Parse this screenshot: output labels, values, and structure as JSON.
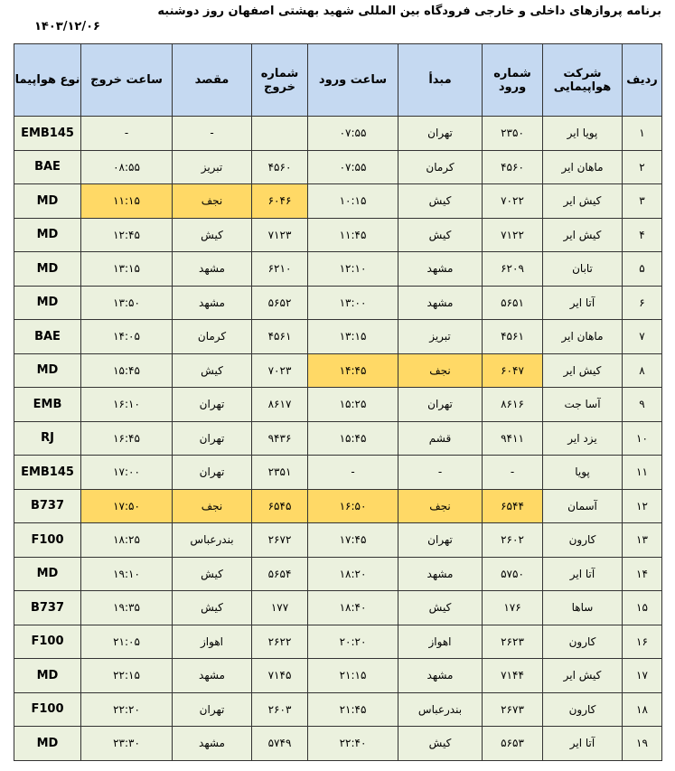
{
  "header": {
    "title": "برنامه پروازهای داخلی و خارجی فرودگاه بین المللی شهید بهشتی اصفهان روز  دوشنبه",
    "date": "۱۴۰۳/۱۲/۰۶"
  },
  "table": {
    "columns": [
      "ردیف",
      "شرکت هواپیمایی",
      "شماره ورود",
      "مبدأ",
      "ساعت ورود",
      "شماره خروج",
      "مقصد",
      "ساعت خروج",
      "نوع هواپیما"
    ],
    "rows": [
      [
        "۱",
        "پویا ایر",
        "۲۳۵۰",
        "تهران",
        "۰۷:۵۵",
        null,
        "-",
        "-",
        "EMB145"
      ],
      [
        "۲",
        "ماهان ایر",
        "۴۵۶۰",
        "کرمان",
        "۰۷:۵۵",
        "۴۵۶۰",
        "تبریز",
        "۰۸:۵۵",
        "BAE"
      ],
      [
        "۳",
        "کیش ایر",
        "۷۰۲۲",
        "کیش",
        "۱۰:۱۵",
        "۶۰۴۶",
        "نجف",
        "۱۱:۱۵",
        "MD"
      ],
      [
        "۴",
        "کیش ایر",
        "۷۱۲۲",
        "کیش",
        "۱۱:۴۵",
        "۷۱۲۳",
        "کیش",
        "۱۲:۴۵",
        "MD"
      ],
      [
        "۵",
        "تابان",
        "۶۲۰۹",
        "مشهد",
        "۱۲:۱۰",
        "۶۲۱۰",
        "مشهد",
        "۱۳:۱۵",
        "MD"
      ],
      [
        "۶",
        "آتا ایر",
        "۵۶۵۱",
        "مشهد",
        "۱۳:۰۰",
        "۵۶۵۲",
        "مشهد",
        "۱۳:۵۰",
        "MD"
      ],
      [
        "۷",
        "ماهان ایر",
        "۴۵۶۱",
        "تبریز",
        "۱۳:۱۵",
        "۴۵۶۱",
        "کرمان",
        "۱۴:۰۵",
        "BAE"
      ],
      [
        "۸",
        "کیش ایر",
        "۶۰۴۷",
        "نجف",
        "۱۴:۴۵",
        "۷۰۲۳",
        "کیش",
        "۱۵:۴۵",
        "MD"
      ],
      [
        "۹",
        "آسا جت",
        "۸۶۱۶",
        "تهران",
        "۱۵:۲۵",
        "۸۶۱۷",
        "تهران",
        "۱۶:۱۰",
        "EMB"
      ],
      [
        "۱۰",
        "یزد ایر",
        "۹۴۱۱",
        "قشم",
        "۱۵:۴۵",
        "۹۴۳۶",
        "تهران",
        "۱۶:۴۵",
        "RJ"
      ],
      [
        "۱۱",
        "پویا",
        "-",
        "-",
        "-",
        "۲۳۵۱",
        "تهران",
        "۱۷:۰۰",
        "EMB145"
      ],
      [
        "۱۲",
        "آسمان",
        "۶۵۴۴",
        "نجف",
        "۱۶:۵۰",
        "۶۵۴۵",
        "نجف",
        "۱۷:۵۰",
        "B737"
      ],
      [
        "۱۳",
        "کارون",
        "۲۶۰۲",
        "تهران",
        "۱۷:۴۵",
        "۲۶۷۲",
        "بندرعباس",
        "۱۸:۲۵",
        "F100"
      ],
      [
        "۱۴",
        "آتا ایر",
        "۵۷۵۰",
        "مشهد",
        "۱۸:۲۰",
        "۵۶۵۴",
        "کیش",
        "۱۹:۱۰",
        "MD"
      ],
      [
        "۱۵",
        "ساها",
        "۱۷۶",
        "کیش",
        "۱۸:۴۰",
        "۱۷۷",
        "کیش",
        "۱۹:۳۵",
        "B737"
      ],
      [
        "۱۶",
        "کارون",
        "۲۶۲۳",
        "اهواز",
        "۲۰:۲۰",
        "۲۶۲۲",
        "اهواز",
        "۲۱:۰۵",
        "F100"
      ],
      [
        "۱۷",
        "کیش ایر",
        "۷۱۴۴",
        "مشهد",
        "۲۱:۱۵",
        "۷۱۴۵",
        "مشهد",
        "۲۲:۱۵",
        "MD"
      ],
      [
        "۱۸",
        "کارون",
        "۲۶۷۳",
        "بندرعباس",
        "۲۱:۴۵",
        "۲۶۰۳",
        "تهران",
        "۲۲:۲۰",
        "F100"
      ],
      [
        "۱۹",
        "آتا ایر",
        "۵۶۵۳",
        "کیش",
        "۲۲:۴۰",
        "۵۷۴۹",
        "مشهد",
        "۲۳:۳۰",
        "MD"
      ]
    ]
  }
}
